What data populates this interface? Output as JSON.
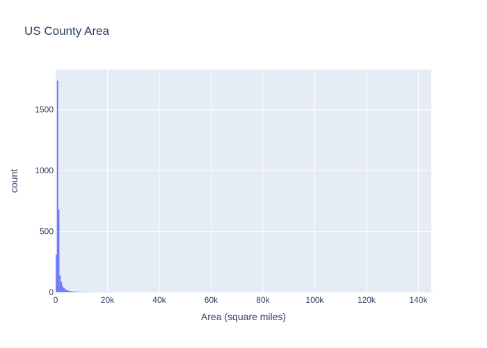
{
  "chart_data": {
    "type": "bar",
    "subtype": "histogram",
    "title": "US County Area",
    "xlabel": "Area (square miles)",
    "ylabel": "count",
    "xlim": [
      0,
      145000
    ],
    "ylim": [
      0,
      1830
    ],
    "bin_width": 500,
    "x_tick_values": [
      0,
      20000,
      40000,
      60000,
      80000,
      100000,
      120000,
      140000
    ],
    "x_tick_labels": [
      "0",
      "20k",
      "40k",
      "60k",
      "80k",
      "100k",
      "120k",
      "140k"
    ],
    "y_tick_values": [
      0,
      500,
      1000,
      1500
    ],
    "y_tick_labels": [
      "0",
      "500",
      "1000",
      "1500"
    ],
    "bins": [
      {
        "x0": 0,
        "x1": 500,
        "count": 310
      },
      {
        "x0": 500,
        "x1": 1000,
        "count": 1740
      },
      {
        "x0": 1000,
        "x1": 1500,
        "count": 680
      },
      {
        "x0": 1500,
        "x1": 2000,
        "count": 140
      },
      {
        "x0": 2000,
        "x1": 2500,
        "count": 85
      },
      {
        "x0": 2500,
        "x1": 3000,
        "count": 50
      },
      {
        "x0": 3000,
        "x1": 3500,
        "count": 35
      },
      {
        "x0": 3500,
        "x1": 4000,
        "count": 25
      },
      {
        "x0": 4000,
        "x1": 4500,
        "count": 20
      },
      {
        "x0": 4500,
        "x1": 5000,
        "count": 15
      },
      {
        "x0": 5000,
        "x1": 5500,
        "count": 12
      },
      {
        "x0": 5500,
        "x1": 6000,
        "count": 10
      },
      {
        "x0": 6000,
        "x1": 6500,
        "count": 8
      },
      {
        "x0": 6500,
        "x1": 7000,
        "count": 7
      },
      {
        "x0": 7000,
        "x1": 7500,
        "count": 6
      },
      {
        "x0": 7500,
        "x1": 8000,
        "count": 5
      },
      {
        "x0": 8000,
        "x1": 8500,
        "count": 4
      },
      {
        "x0": 8500,
        "x1": 9000,
        "count": 3
      },
      {
        "x0": 9000,
        "x1": 9500,
        "count": 3
      },
      {
        "x0": 9500,
        "x1": 10000,
        "count": 3
      },
      {
        "x0": 10000,
        "x1": 10500,
        "count": 3
      },
      {
        "x0": 10500,
        "x1": 11000,
        "count": 2
      },
      {
        "x0": 11000,
        "x1": 11500,
        "count": 2
      },
      {
        "x0": 12000,
        "x1": 12500,
        "count": 2
      },
      {
        "x0": 13000,
        "x1": 13500,
        "count": 1
      },
      {
        "x0": 15000,
        "x1": 15500,
        "count": 1
      },
      {
        "x0": 17500,
        "x1": 18000,
        "count": 1
      },
      {
        "x0": 19000,
        "x1": 19500,
        "count": 1
      },
      {
        "x0": 20000,
        "x1": 20500,
        "count": 1
      },
      {
        "x0": 145000,
        "x1": 145500,
        "count": 1
      }
    ],
    "bar_color": "#636efa",
    "plot_background": "#e5ecf6",
    "grid": true,
    "legend": "none"
  }
}
